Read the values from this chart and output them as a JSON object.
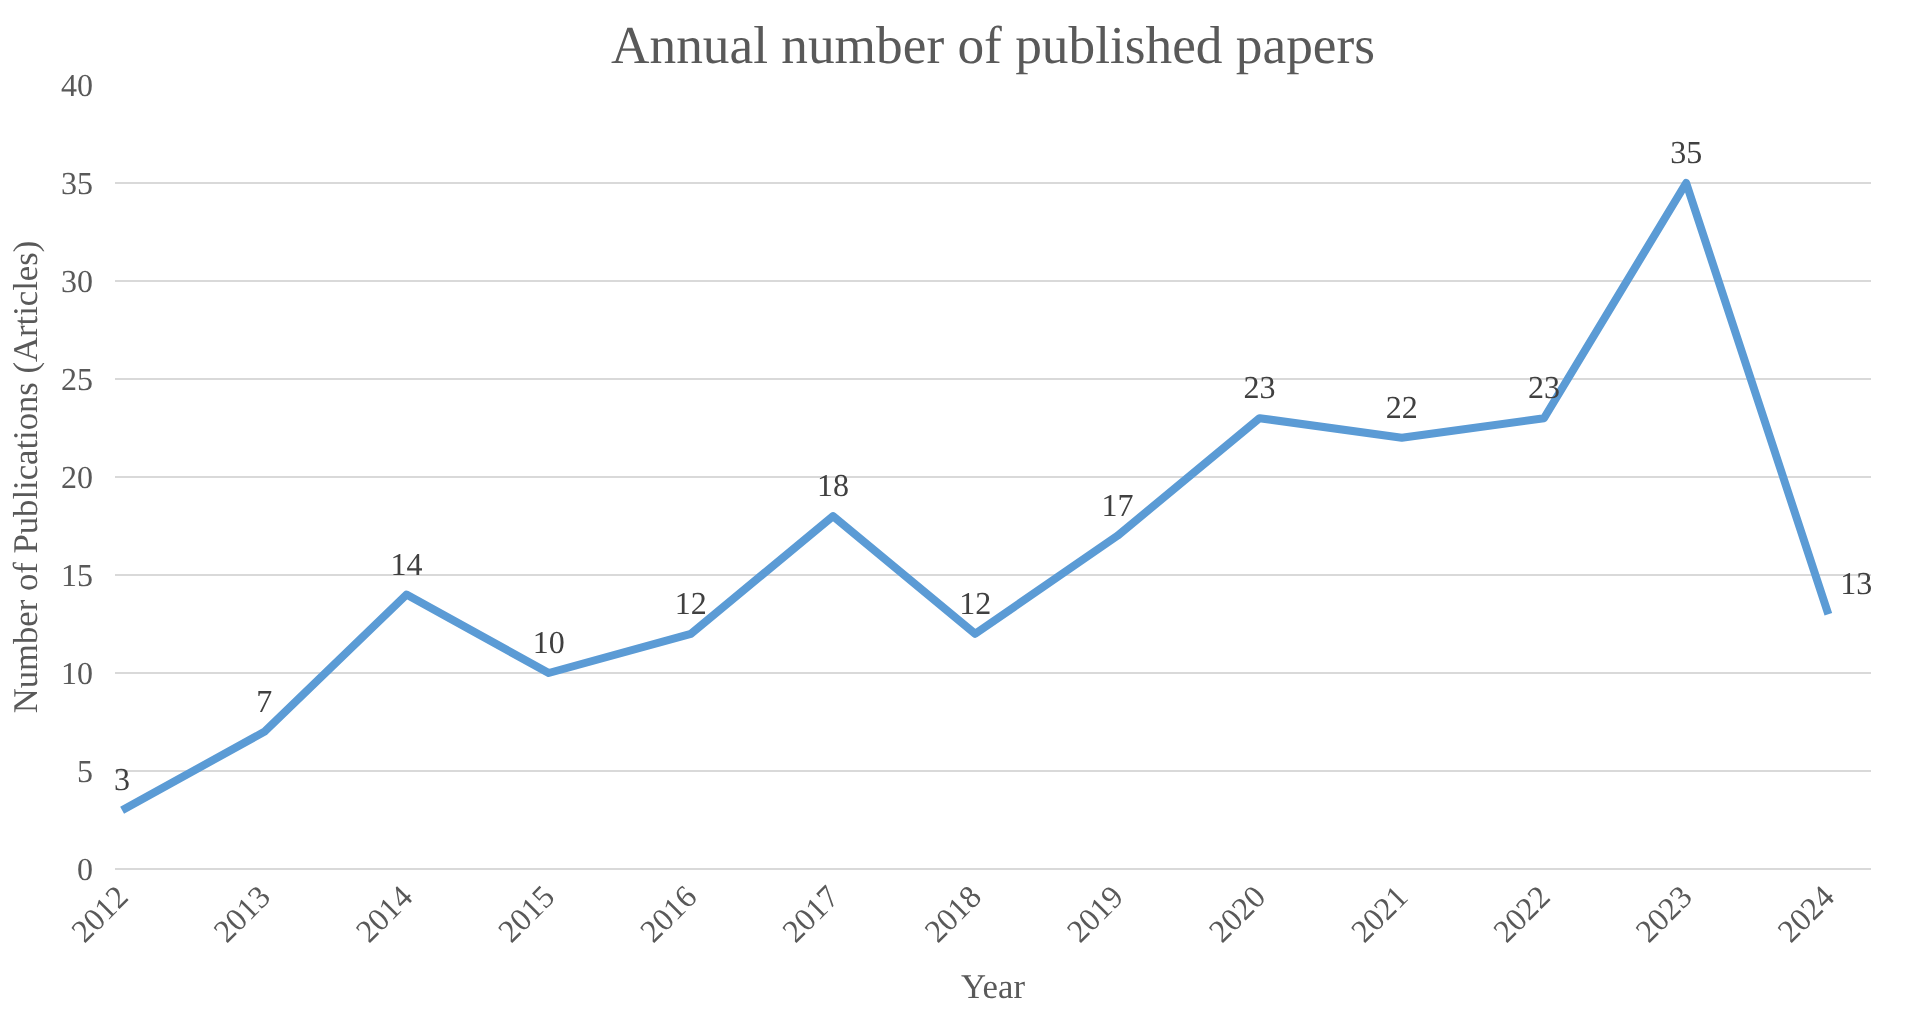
{
  "chart_data": {
    "type": "line",
    "title": "Annual number of published papers",
    "xlabel": "Year",
    "ylabel": "Number of Publications (Articles)",
    "categories": [
      "2012",
      "2013",
      "2014",
      "2015",
      "2016",
      "2017",
      "2018",
      "2019",
      "2020",
      "2021",
      "2022",
      "2023",
      "2024"
    ],
    "values": [
      3,
      7,
      14,
      10,
      12,
      18,
      12,
      17,
      23,
      22,
      23,
      35,
      13
    ],
    "color": "#5b9bd5",
    "ylim": [
      0,
      40
    ],
    "yticks": [
      0,
      5,
      10,
      15,
      20,
      25,
      30,
      35,
      40
    ],
    "grid": "y",
    "data_labels": true,
    "marker": "none",
    "line_style": "solid"
  }
}
